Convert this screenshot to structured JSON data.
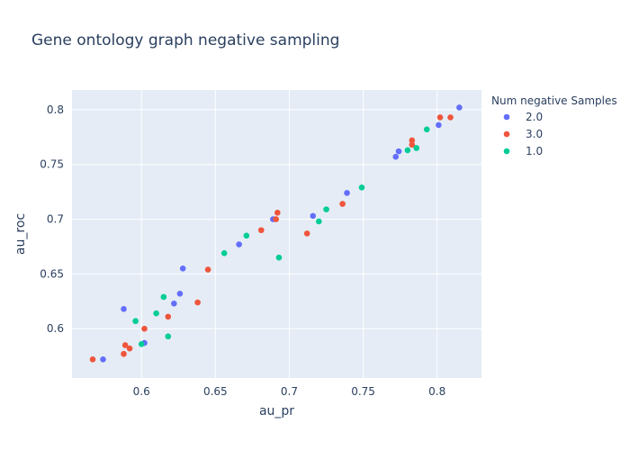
{
  "chart_data": {
    "type": "scatter",
    "title": "Gene ontology graph negative sampling",
    "xlabel": "au_pr",
    "ylabel": "au_roc",
    "xlim": [
      0.553,
      0.83
    ],
    "ylim": [
      0.555,
      0.818
    ],
    "xticks": [
      0.6,
      0.65,
      0.7,
      0.75,
      0.8
    ],
    "xtick_labels": [
      "0.6",
      "0.65",
      "0.7",
      "0.75",
      "0.8"
    ],
    "yticks": [
      0.6,
      0.65,
      0.7,
      0.75,
      0.8
    ],
    "ytick_labels": [
      "0.6",
      "0.65",
      "0.7",
      "0.75",
      "0.8"
    ],
    "grid": true,
    "legend": {
      "title": "Num negative Samples",
      "position": "right"
    },
    "series": [
      {
        "name": "2.0",
        "color": "#636efa",
        "points": [
          [
            0.574,
            0.572
          ],
          [
            0.588,
            0.618
          ],
          [
            0.602,
            0.587
          ],
          [
            0.622,
            0.623
          ],
          [
            0.626,
            0.632
          ],
          [
            0.628,
            0.655
          ],
          [
            0.666,
            0.677
          ],
          [
            0.689,
            0.7
          ],
          [
            0.716,
            0.703
          ],
          [
            0.739,
            0.724
          ],
          [
            0.772,
            0.757
          ],
          [
            0.774,
            0.762
          ],
          [
            0.801,
            0.786
          ],
          [
            0.815,
            0.802
          ]
        ]
      },
      {
        "name": "3.0",
        "color": "#ef553b",
        "points": [
          [
            0.567,
            0.572
          ],
          [
            0.588,
            0.577
          ],
          [
            0.589,
            0.585
          ],
          [
            0.592,
            0.582
          ],
          [
            0.602,
            0.6
          ],
          [
            0.618,
            0.611
          ],
          [
            0.638,
            0.624
          ],
          [
            0.645,
            0.654
          ],
          [
            0.681,
            0.69
          ],
          [
            0.691,
            0.7
          ],
          [
            0.692,
            0.706
          ],
          [
            0.712,
            0.687
          ],
          [
            0.736,
            0.714
          ],
          [
            0.783,
            0.768
          ],
          [
            0.783,
            0.772
          ],
          [
            0.802,
            0.793
          ],
          [
            0.809,
            0.793
          ]
        ]
      },
      {
        "name": "1.0",
        "color": "#00cc96",
        "points": [
          [
            0.596,
            0.607
          ],
          [
            0.6,
            0.586
          ],
          [
            0.61,
            0.614
          ],
          [
            0.615,
            0.629
          ],
          [
            0.618,
            0.593
          ],
          [
            0.656,
            0.669
          ],
          [
            0.671,
            0.685
          ],
          [
            0.693,
            0.665
          ],
          [
            0.72,
            0.698
          ],
          [
            0.725,
            0.709
          ],
          [
            0.749,
            0.729
          ],
          [
            0.78,
            0.763
          ],
          [
            0.786,
            0.765
          ],
          [
            0.793,
            0.782
          ]
        ]
      }
    ]
  }
}
